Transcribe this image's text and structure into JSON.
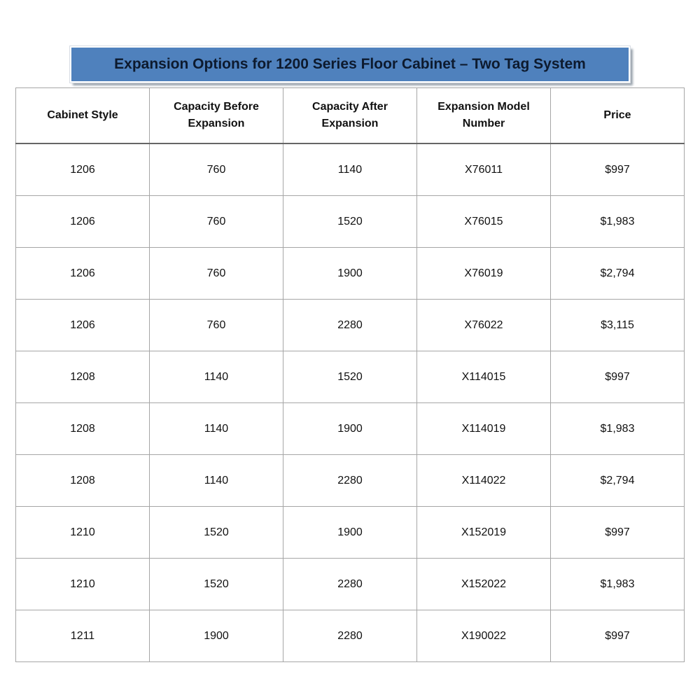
{
  "title": "Expansion Options for 1200 Series Floor Cabinet – Two Tag System",
  "colors": {
    "banner": "#4f81bd",
    "border": "#a6a6a6"
  },
  "columns": [
    "Cabinet Style",
    "Capacity Before Expansion",
    "Capacity After Expansion",
    "Expansion Model Number",
    "Price"
  ],
  "rows": [
    [
      "1206",
      "760",
      "1140",
      "X76011",
      "$997"
    ],
    [
      "1206",
      "760",
      "1520",
      "X76015",
      "$1,983"
    ],
    [
      "1206",
      "760",
      "1900",
      "X76019",
      "$2,794"
    ],
    [
      "1206",
      "760",
      "2280",
      "X76022",
      "$3,115"
    ],
    [
      "1208",
      "1140",
      "1520",
      "X114015",
      "$997"
    ],
    [
      "1208",
      "1140",
      "1900",
      "X114019",
      "$1,983"
    ],
    [
      "1208",
      "1140",
      "2280",
      "X114022",
      "$2,794"
    ],
    [
      "1210",
      "1520",
      "1900",
      "X152019",
      "$997"
    ],
    [
      "1210",
      "1520",
      "2280",
      "X152022",
      "$1,983"
    ],
    [
      "1211",
      "1900",
      "2280",
      "X190022",
      "$997"
    ]
  ]
}
